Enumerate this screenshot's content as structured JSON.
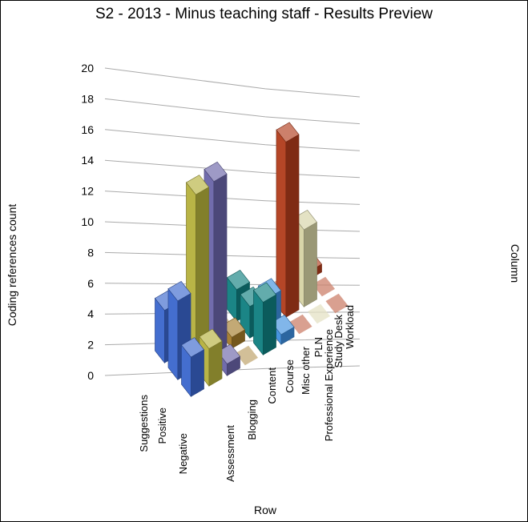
{
  "chart_data": {
    "type": "bar",
    "variant": "3d-grid",
    "title": "S2 - 2013 - Minus teaching staff - Results Preview",
    "ylabel": "Coding references count",
    "xlabel": "Row",
    "zlabel": "Column",
    "ylim": [
      0,
      20
    ],
    "yticks": [
      "0",
      "2",
      "4",
      "6",
      "8",
      "10",
      "12",
      "14",
      "16",
      "18",
      "20"
    ],
    "rows": [
      "Suggestions",
      "Positive",
      "Negative"
    ],
    "columns": [
      "Assessment",
      "Blogging",
      "Content",
      "Course",
      "Misc other",
      "PLN",
      "Professional Experience",
      "Study Desk",
      "Workload"
    ],
    "column_colors": [
      "#3a66cc",
      "#b5b03c",
      "#6a64a8",
      "#a37a2a",
      "#0f7f80",
      "#3d8ede",
      "#b13c1c",
      "#d6d3a4",
      "#b13c1c"
    ],
    "series": [
      {
        "name": "Suggestions",
        "values": [
          4,
          1,
          0,
          0,
          3,
          0,
          0,
          7,
          1
        ]
      },
      {
        "name": "Positive",
        "values": [
          6,
          14,
          15,
          1,
          3,
          3,
          19,
          9,
          0
        ]
      },
      {
        "name": "Negative",
        "values": [
          3,
          3,
          1,
          0,
          5,
          1,
          0,
          0,
          0
        ]
      }
    ]
  }
}
